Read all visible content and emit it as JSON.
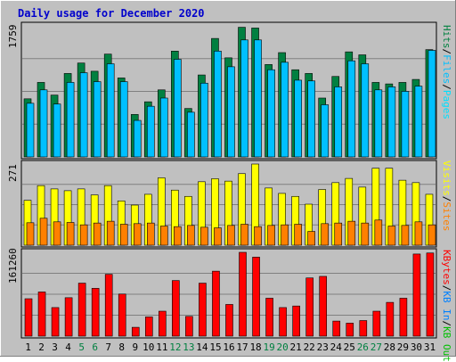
{
  "title": "Daily usage for December 2020",
  "colors": {
    "hits": "#008040",
    "files": "#00c0ff",
    "pages": "#00e0ff",
    "visits": "#ffff00",
    "sites": "#ff8000",
    "kb": "#ff0000",
    "kb_in": "#0080ff",
    "kb_out": "#00c000"
  },
  "chart_data": {
    "type": "bar",
    "categories": [
      "1",
      "2",
      "3",
      "4",
      "5",
      "6",
      "7",
      "8",
      "9",
      "10",
      "11",
      "12",
      "13",
      "14",
      "15",
      "16",
      "17",
      "18",
      "19",
      "20",
      "21",
      "22",
      "23",
      "24",
      "25",
      "26",
      "27",
      "28",
      "29",
      "30",
      "31"
    ],
    "weekend_days": [
      "5",
      "6",
      "12",
      "13",
      "19",
      "20",
      "26",
      "27"
    ],
    "panels": [
      {
        "id": "top",
        "max_label": "1759",
        "ymax": 1759,
        "legend": [
          {
            "text": "Hits",
            "color_key": "hits"
          },
          {
            "text": "/",
            "color_key": null
          },
          {
            "text": "Files",
            "color_key": "files"
          },
          {
            "text": "/",
            "color_key": null
          },
          {
            "text": "Pages",
            "color_key": "pages"
          }
        ],
        "series": [
          {
            "name": "Hits",
            "color_key": "hits",
            "values": [
              780,
              1000,
              830,
              1120,
              1260,
              1150,
              1380,
              1060,
              570,
              740,
              900,
              1420,
              650,
              1100,
              1590,
              1330,
              1740,
              1730,
              1240,
              1400,
              1170,
              1120,
              790,
              1080,
              1410,
              1370,
              1000,
              980,
              1000,
              1040,
              1440
            ]
          },
          {
            "name": "Files",
            "color_key": "files",
            "values": [
              720,
              900,
              710,
              1000,
              1130,
              1010,
              1250,
              1010,
              490,
              680,
              790,
              1310,
              600,
              990,
              1420,
              1210,
              1570,
              1570,
              1170,
              1270,
              1030,
              1020,
              700,
              940,
              1290,
              1250,
              900,
              940,
              880,
              950,
              1430
            ]
          },
          {
            "name": "Pages",
            "color_key": "pages",
            "values": [
              720,
              900,
              710,
              1000,
              1130,
              1010,
              1250,
              1010,
              490,
              680,
              790,
              1310,
              600,
              990,
              1420,
              1210,
              1570,
              1570,
              1170,
              1270,
              1030,
              1020,
              700,
              940,
              1290,
              1250,
              900,
              940,
              880,
              950,
              1430
            ]
          }
        ]
      },
      {
        "id": "middle",
        "max_label": "271",
        "ymax": 271,
        "legend": [
          {
            "text": "Visits",
            "color_key": "visits"
          },
          {
            "text": "/",
            "color_key": null
          },
          {
            "text": "Sites",
            "color_key": "sites"
          }
        ],
        "series": [
          {
            "name": "Visits",
            "color_key": "visits",
            "values": [
              150,
              199,
              188,
              182,
              188,
              168,
              199,
              148,
              134,
              170,
              225,
              184,
              163,
              212,
              222,
              214,
              239,
              271,
              191,
              173,
              163,
              137,
              186,
              209,
              223,
              194,
              257,
              257,
              217,
              209,
              170
            ]
          },
          {
            "name": "Sites",
            "color_key": "sites",
            "values": [
              75,
              90,
              78,
              76,
              68,
              74,
              80,
              70,
              72,
              74,
              64,
              62,
              66,
              60,
              58,
              66,
              70,
              62,
              66,
              68,
              70,
              46,
              72,
              74,
              80,
              74,
              84,
              64,
              66,
              78,
              68
            ]
          }
        ]
      },
      {
        "id": "bottom",
        "max_label": "161260",
        "ymax": 161260,
        "legend": [
          {
            "text": "KBytes",
            "color_key": "kb"
          },
          {
            "text": "/",
            "color_key": null
          },
          {
            "text": "KB In",
            "color_key": "kb_in"
          },
          {
            "text": "/",
            "color_key": null
          },
          {
            "text": "KB Out",
            "color_key": "kb_out"
          }
        ],
        "series": [
          {
            "name": "KBytes",
            "color_key": "kb",
            "values": [
              72000,
              85000,
              55000,
              74000,
              102000,
              92000,
              119000,
              81000,
              17000,
              37000,
              48000,
              107000,
              38000,
              102000,
              125000,
              61000,
              161260,
              152000,
              73000,
              55000,
              58000,
              112000,
              115000,
              29000,
              25000,
              30000,
              48000,
              65000,
              73000,
              158000,
              160000
            ]
          }
        ]
      }
    ]
  }
}
